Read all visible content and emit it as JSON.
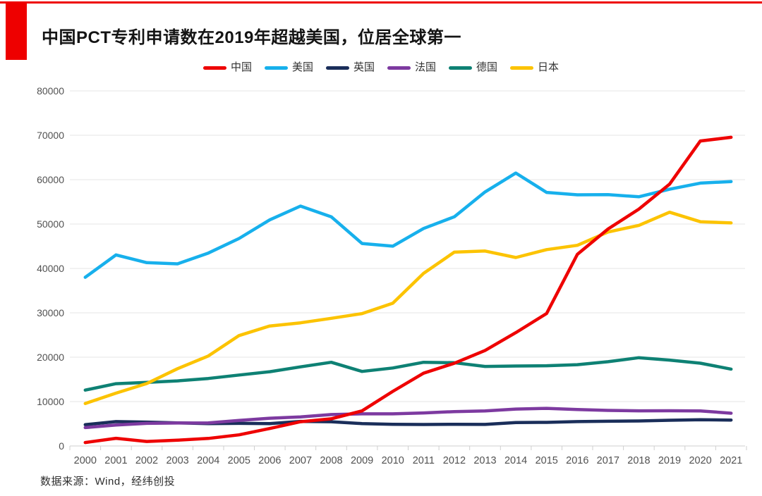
{
  "page": {
    "accent_color": "#ee0000",
    "background_color": "#ffffff"
  },
  "header": {
    "title": "中国PCT专利申请数在2019年超越美国，位居全球第一"
  },
  "footer": {
    "source_note": "数据来源：Wind，经纬创投"
  },
  "chart_data": {
    "type": "line",
    "title": "中国PCT专利申请数在2019年超越美国，位居全球第一",
    "categories": [
      "2000",
      "2001",
      "2002",
      "2003",
      "2004",
      "2005",
      "2006",
      "2007",
      "2008",
      "2009",
      "2010",
      "2011",
      "2012",
      "2013",
      "2014",
      "2015",
      "2016",
      "2017",
      "2018",
      "2019",
      "2020",
      "2021"
    ],
    "series": [
      {
        "id": "china",
        "name": "中国",
        "color": "#ee0000",
        "values": [
          781,
          1731,
          1018,
          1295,
          1706,
          2503,
          3942,
          5455,
          6120,
          7900,
          12296,
          16402,
          18627,
          21516,
          25539,
          29846,
          43168,
          48882,
          53345,
          58990,
          68720,
          69540
        ]
      },
      {
        "id": "usa",
        "name": "美国",
        "color": "#17b0ec",
        "values": [
          38007,
          43055,
          41296,
          41028,
          43464,
          46742,
          50941,
          54043,
          51637,
          45618,
          45008,
          48996,
          51642,
          57239,
          61492,
          57123,
          56595,
          56624,
          56142,
          57840,
          59230,
          59570
        ]
      },
      {
        "id": "uk",
        "name": "英国",
        "color": "#1a2e5a",
        "values": [
          4795,
          5496,
          5376,
          5206,
          5027,
          5097,
          5045,
          5542,
          5466,
          5044,
          4891,
          4844,
          4895,
          4865,
          5285,
          5313,
          5496,
          5567,
          5641,
          5786,
          5912,
          5841
        ]
      },
      {
        "id": "france",
        "name": "法国",
        "color": "#7d3aa0",
        "values": [
          4138,
          4707,
          5089,
          5171,
          5184,
          5742,
          6256,
          6560,
          7072,
          7237,
          7245,
          7438,
          7739,
          7899,
          8319,
          8476,
          8208,
          8012,
          7914,
          7934,
          7904,
          7380
        ]
      },
      {
        "id": "germany",
        "name": "德国",
        "color": "#0e8174",
        "values": [
          12582,
          14031,
          14326,
          14662,
          15214,
          15985,
          16736,
          17821,
          18855,
          16797,
          17568,
          18851,
          18764,
          17927,
          18008,
          18072,
          18315,
          18982,
          19883,
          19353,
          18643,
          17322
        ]
      },
      {
        "id": "japan",
        "name": "日本",
        "color": "#fcc300",
        "values": [
          9567,
          11904,
          14063,
          17414,
          20264,
          24869,
          27025,
          27743,
          28760,
          29827,
          32156,
          38888,
          43660,
          43918,
          42459,
          44235,
          45209,
          48208,
          49702,
          52660,
          50520,
          50260
        ]
      }
    ],
    "ylim": [
      0,
      80000
    ],
    "ytick_step": 10000,
    "yticks": [
      0,
      10000,
      20000,
      30000,
      40000,
      50000,
      60000,
      70000,
      80000
    ],
    "grid": true,
    "legend_position": "top",
    "colors": {
      "grid": "#e4e4e4",
      "axis": "#cfcfcf",
      "tick_text": "#515151"
    }
  }
}
